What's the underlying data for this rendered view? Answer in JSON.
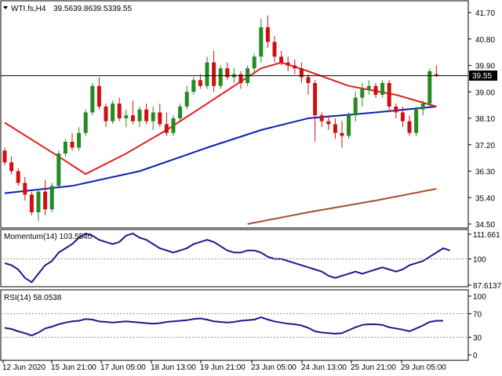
{
  "header": {
    "symbol": "WTI.fs,H4",
    "open": "39.56",
    "high": "39.86",
    "low": "39.53",
    "close": "39.55"
  },
  "price_axis": {
    "ticks": [
      "41.70",
      "40.80",
      "39.90",
      "39.00",
      "38.10",
      "37.20",
      "36.30",
      "35.40",
      "34.50"
    ],
    "current_price_label": "39.55"
  },
  "momentum_panel": {
    "label": "Momentum(14) 103.5540",
    "ticks": [
      "111.661",
      "100",
      "87.6137"
    ]
  },
  "rsi_panel": {
    "label": "RSI(14) 58.0538",
    "ticks": [
      "100",
      "70",
      "30",
      "0"
    ]
  },
  "time_axis": {
    "labels": [
      "12 Jun 2020",
      "15 Jun 21:00",
      "17 Jun 05:00",
      "18 Jun 13:00",
      "19 Jun 21:00",
      "23 Jun 05:00",
      "24 Jun 13:00",
      "25 Jun 21:00",
      "29 Jun 05:00"
    ]
  },
  "colors": {
    "bull": "#228b22",
    "bear": "#d01010",
    "ma_fast": "#e02020",
    "ma_mid": "#1020b0",
    "ma_slow": "#a0522d",
    "momentum": "#1a1a8c",
    "rsi": "#1a1a8c"
  },
  "chart_data": {
    "type": "candlestick",
    "y_range": [
      34.5,
      41.7
    ],
    "candles": [
      [
        37.0,
        37.1,
        36.5,
        36.6
      ],
      [
        36.6,
        36.8,
        36.2,
        36.3
      ],
      [
        36.3,
        36.4,
        35.8,
        35.9
      ],
      [
        35.9,
        36.1,
        35.3,
        35.5
      ],
      [
        35.5,
        35.6,
        34.8,
        34.9
      ],
      [
        34.9,
        35.7,
        34.6,
        35.6
      ],
      [
        35.6,
        36.0,
        34.8,
        35.0
      ],
      [
        35.0,
        35.9,
        34.9,
        35.8
      ],
      [
        35.8,
        37.0,
        35.7,
        36.9
      ],
      [
        36.9,
        37.4,
        36.8,
        37.3
      ],
      [
        37.3,
        37.6,
        37.0,
        37.1
      ],
      [
        37.1,
        37.8,
        37.0,
        37.6
      ],
      [
        37.6,
        38.4,
        37.5,
        38.3
      ],
      [
        38.3,
        39.3,
        38.2,
        39.2
      ],
      [
        39.2,
        39.5,
        38.4,
        38.5
      ],
      [
        38.5,
        38.6,
        37.8,
        38.0
      ],
      [
        38.0,
        38.7,
        37.9,
        38.6
      ],
      [
        38.6,
        38.8,
        38.0,
        38.1
      ],
      [
        38.1,
        38.4,
        37.8,
        38.2
      ],
      [
        38.2,
        38.7,
        37.9,
        38.0
      ],
      [
        38.0,
        38.5,
        37.8,
        38.4
      ],
      [
        38.4,
        38.6,
        37.9,
        38.0
      ],
      [
        38.0,
        38.5,
        37.7,
        38.3
      ],
      [
        38.3,
        38.6,
        37.8,
        37.9
      ],
      [
        37.9,
        38.3,
        37.5,
        37.6
      ],
      [
        37.6,
        38.2,
        37.5,
        38.1
      ],
      [
        38.1,
        38.6,
        38.0,
        38.5
      ],
      [
        38.5,
        39.2,
        38.4,
        39.0
      ],
      [
        39.0,
        39.5,
        38.9,
        39.4
      ],
      [
        39.4,
        39.6,
        39.1,
        39.2
      ],
      [
        39.2,
        40.2,
        39.1,
        40.0
      ],
      [
        40.0,
        40.4,
        39.0,
        39.2
      ],
      [
        39.2,
        39.9,
        39.1,
        39.8
      ],
      [
        39.8,
        40.0,
        39.4,
        39.5
      ],
      [
        39.5,
        39.8,
        39.3,
        39.6
      ],
      [
        39.6,
        39.7,
        39.1,
        39.3
      ],
      [
        39.3,
        39.9,
        39.2,
        39.8
      ],
      [
        39.8,
        40.3,
        39.6,
        40.2
      ],
      [
        40.2,
        41.5,
        40.0,
        41.2
      ],
      [
        41.2,
        41.6,
        40.5,
        40.7
      ],
      [
        40.7,
        40.9,
        40.0,
        40.2
      ],
      [
        40.2,
        40.4,
        39.9,
        40.0
      ],
      [
        40.0,
        40.2,
        39.7,
        39.9
      ],
      [
        39.9,
        40.1,
        39.6,
        39.8
      ],
      [
        39.8,
        40.0,
        39.3,
        39.5
      ],
      [
        39.5,
        39.6,
        38.9,
        39.3
      ],
      [
        39.3,
        39.4,
        37.3,
        38.2
      ],
      [
        38.2,
        38.3,
        37.8,
        38.0
      ],
      [
        38.0,
        38.2,
        37.7,
        37.9
      ],
      [
        37.9,
        38.1,
        37.4,
        37.6
      ],
      [
        37.6,
        38.0,
        37.1,
        37.5
      ],
      [
        37.5,
        38.3,
        37.4,
        38.2
      ],
      [
        38.2,
        39.0,
        38.0,
        38.8
      ],
      [
        38.8,
        39.3,
        38.5,
        39.1
      ],
      [
        39.1,
        39.4,
        38.9,
        39.2
      ],
      [
        39.2,
        39.3,
        38.8,
        38.9
      ],
      [
        38.9,
        39.4,
        38.8,
        39.3
      ],
      [
        39.3,
        39.4,
        38.3,
        38.5
      ],
      [
        38.5,
        38.6,
        38.1,
        38.3
      ],
      [
        38.3,
        38.5,
        37.8,
        38.0
      ],
      [
        38.0,
        38.2,
        37.5,
        37.6
      ],
      [
        37.6,
        38.5,
        37.5,
        38.4
      ],
      [
        38.4,
        38.7,
        38.2,
        38.6
      ],
      [
        38.6,
        39.8,
        38.5,
        39.7
      ],
      [
        39.6,
        39.9,
        39.5,
        39.55
      ]
    ],
    "ma_fast": [
      [
        0,
        37.95
      ],
      [
        8,
        36.8
      ],
      [
        12,
        36.2
      ],
      [
        18,
        36.9
      ],
      [
        24,
        37.7
      ],
      [
        30,
        38.6
      ],
      [
        38,
        39.8
      ],
      [
        41,
        40.0
      ],
      [
        45,
        39.7
      ],
      [
        51,
        39.2
      ],
      [
        58,
        38.9
      ],
      [
        64,
        38.5
      ]
    ],
    "ma_mid": [
      [
        0,
        35.55
      ],
      [
        10,
        35.8
      ],
      [
        20,
        36.3
      ],
      [
        30,
        37.1
      ],
      [
        38,
        37.7
      ],
      [
        45,
        38.1
      ],
      [
        55,
        38.3
      ],
      [
        64,
        38.5
      ]
    ],
    "ma_slow": [
      [
        36,
        34.5
      ],
      [
        45,
        34.9
      ],
      [
        55,
        35.3
      ],
      [
        64,
        35.7
      ]
    ],
    "momentum": {
      "range": [
        87.6137,
        111.661
      ],
      "values": [
        98,
        97,
        95,
        91,
        89,
        93,
        97,
        99,
        103,
        105,
        107,
        110,
        112,
        111,
        109,
        108,
        107,
        108,
        111,
        112,
        110,
        109,
        107,
        105,
        104,
        103,
        104,
        105,
        107,
        108,
        109,
        108,
        106,
        104,
        103,
        103,
        104,
        104,
        103,
        101,
        100,
        100,
        99,
        98,
        97,
        96,
        95,
        94,
        92,
        91,
        92,
        93,
        94,
        93,
        94,
        95,
        96,
        95,
        94,
        95,
        97,
        98,
        99,
        101,
        103,
        105,
        104
      ]
    },
    "rsi": {
      "range": [
        0,
        100
      ],
      "values": [
        46,
        44,
        40,
        37,
        33,
        38,
        45,
        48,
        52,
        55,
        57,
        58,
        61,
        60,
        57,
        56,
        55,
        56,
        57,
        56,
        55,
        54,
        53,
        54,
        56,
        57,
        58,
        59,
        61,
        62,
        60,
        57,
        56,
        55,
        56,
        58,
        59,
        60,
        64,
        60,
        57,
        55,
        53,
        52,
        50,
        46,
        40,
        38,
        37,
        36,
        37,
        42,
        47,
        51,
        52,
        52,
        51,
        47,
        45,
        43,
        40,
        45,
        50,
        56,
        58,
        58
      ]
    }
  }
}
